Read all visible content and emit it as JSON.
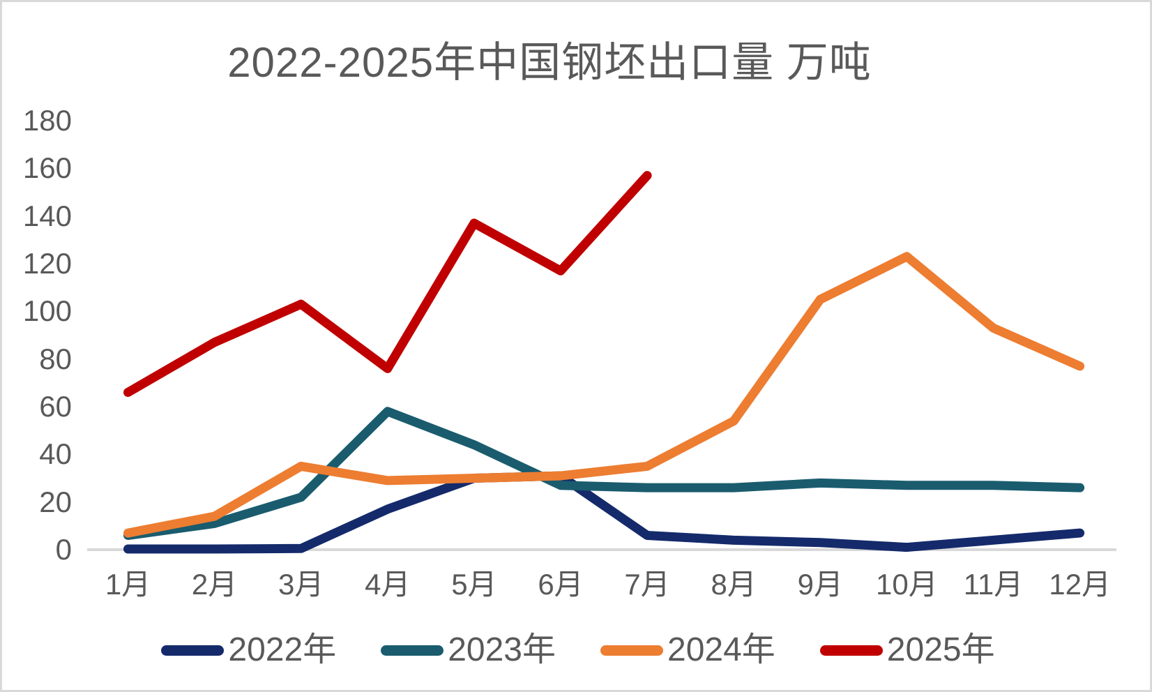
{
  "chart_data": {
    "type": "line",
    "title": "2022-2025年中国钢坯出口量 万吨",
    "unit": "万吨",
    "categories": [
      "1月",
      "2月",
      "3月",
      "4月",
      "5月",
      "6月",
      "7月",
      "8月",
      "9月",
      "10月",
      "11月",
      "12月"
    ],
    "series": [
      {
        "name": "2022年",
        "color": "#142A6B",
        "values": [
          0.3,
          0.3,
          0.5,
          17,
          30,
          31,
          6,
          4,
          3,
          1,
          4,
          7
        ]
      },
      {
        "name": "2023年",
        "color": "#1A5C6E",
        "values": [
          6,
          11,
          22,
          58,
          44,
          27,
          26,
          26,
          28,
          27,
          27,
          26
        ]
      },
      {
        "name": "2024年",
        "color": "#ED7D31",
        "values": [
          7,
          14,
          35,
          29,
          30,
          31,
          35,
          54,
          105,
          123,
          93,
          77
        ]
      },
      {
        "name": "2025年",
        "color": "#C00000",
        "values": [
          66,
          87,
          103,
          76,
          137,
          117,
          157
        ]
      }
    ],
    "ylim": [
      0,
      180
    ],
    "yticks": [
      0,
      20,
      40,
      60,
      80,
      100,
      120,
      140,
      160,
      180
    ],
    "grid": false,
    "legend_position": "bottom",
    "axis_line_color": "#d9d9d9",
    "text_color": "#595959"
  }
}
